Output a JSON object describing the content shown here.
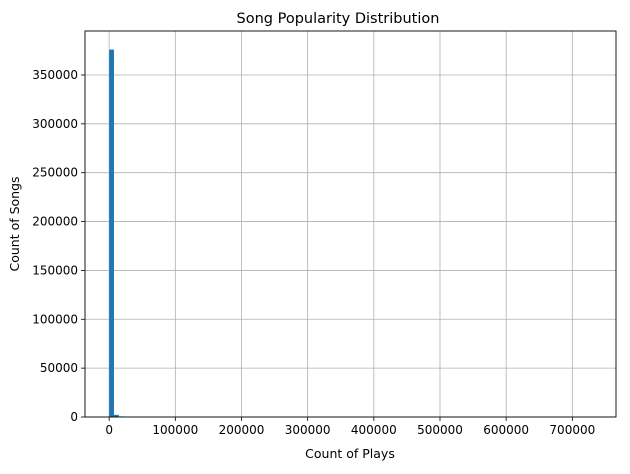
{
  "chart_data": {
    "type": "bar",
    "title": "Song Popularity Distribution",
    "xlabel": "Count of Plays",
    "ylabel": "Count of Songs",
    "xlim": [
      -36500,
      766000
    ],
    "ylim": [
      0,
      395000
    ],
    "xticks": [
      0,
      100000,
      200000,
      300000,
      400000,
      500000,
      600000,
      700000
    ],
    "yticks": [
      0,
      50000,
      100000,
      150000,
      200000,
      250000,
      300000,
      350000
    ],
    "grid": true,
    "bar_color": "#1f77b4",
    "bin_width": 7300,
    "bins": [
      {
        "x0": 0,
        "x1": 7300,
        "count": 376000
      },
      {
        "x0": 7300,
        "x1": 14600,
        "count": 2200
      },
      {
        "x0": 14600,
        "x1": 21900,
        "count": 600
      },
      {
        "x0": 21900,
        "x1": 29200,
        "count": 200
      },
      {
        "x0": 29200,
        "x1": 36500,
        "count": 80
      }
    ]
  }
}
